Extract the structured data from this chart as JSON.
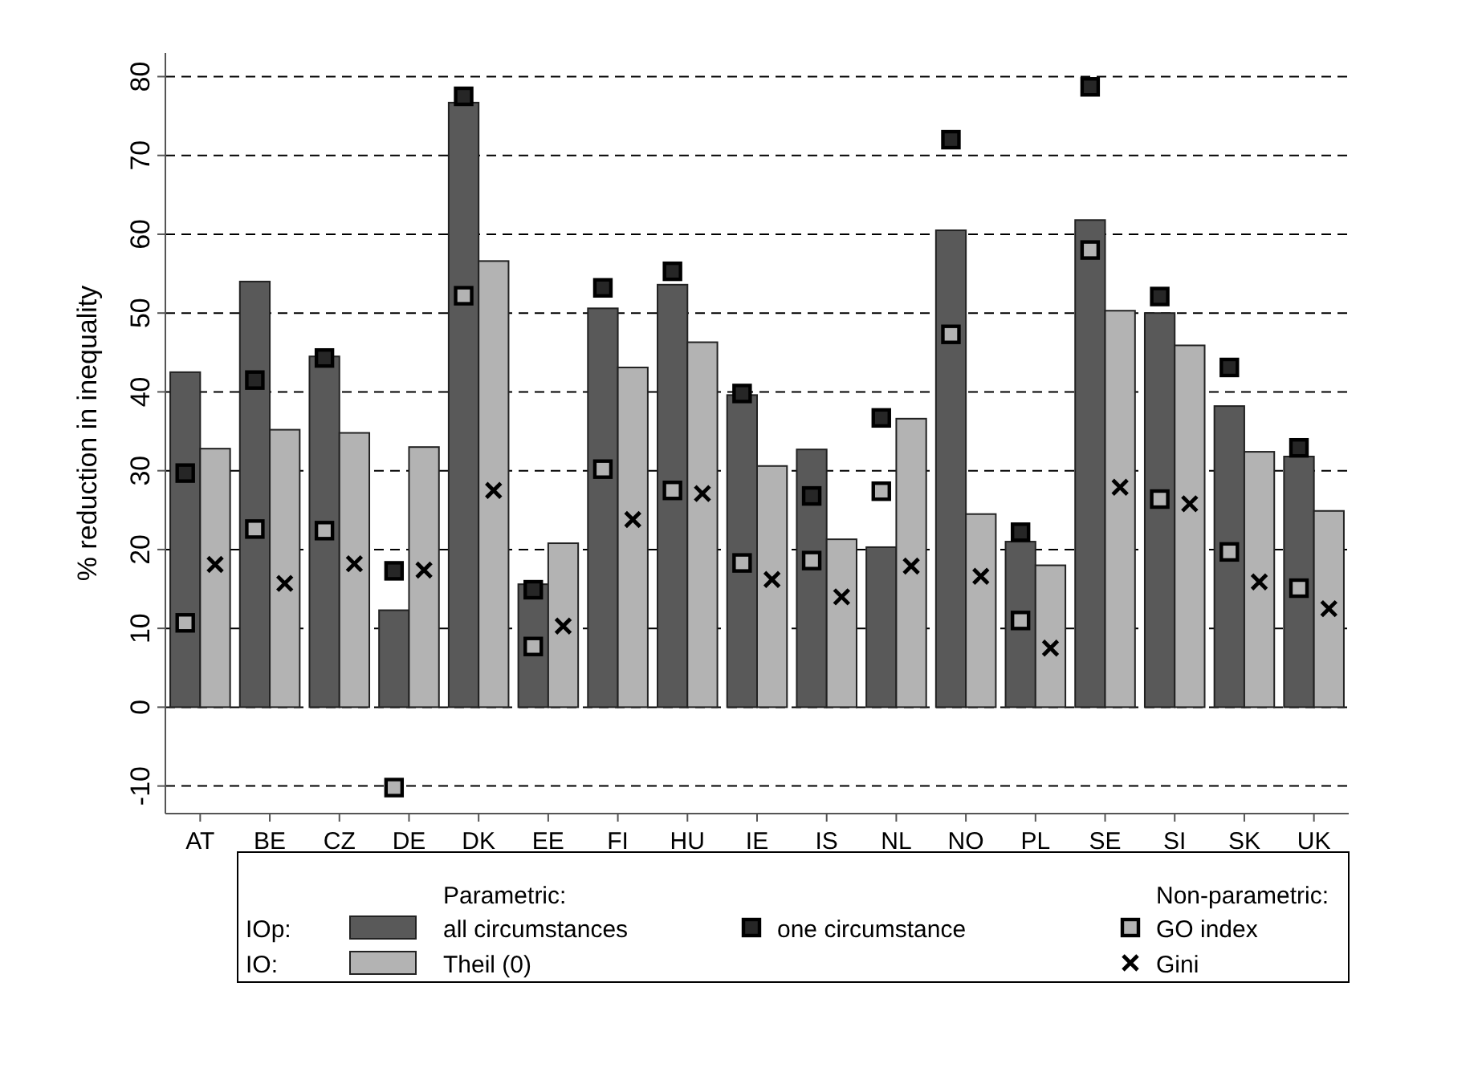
{
  "chart_data": {
    "type": "bar",
    "ylabel": "% reduction in inequality",
    "categories": [
      "AT",
      "BE",
      "CZ",
      "DE",
      "DK",
      "EE",
      "FI",
      "HU",
      "IE",
      "IS",
      "NL",
      "NO",
      "PL",
      "SE",
      "SI",
      "SK",
      "UK"
    ],
    "ylim": [
      -13.5,
      83
    ],
    "yticks": [
      -10,
      0,
      10,
      20,
      30,
      40,
      50,
      60,
      70,
      80
    ],
    "grid": "y",
    "legend": "bottom",
    "legend_title": "Parametric:",
    "annotations": [
      "IOp:",
      "IO:",
      "Non-parametric:"
    ],
    "series": [
      {
        "name": "all circumstances",
        "color": "#595959",
        "values": [
          42.5,
          54,
          44.5,
          12.3,
          76.7,
          15.6,
          50.6,
          53.6,
          39.6,
          32.7,
          20.3,
          60.5,
          21,
          61.8,
          50,
          38.2,
          31.8
        ]
      },
      {
        "name": "Theil (0)",
        "color": "#b3b3b3",
        "values": [
          32.8,
          35.2,
          34.8,
          33,
          56.6,
          20.8,
          43.1,
          46.3,
          30.6,
          21.3,
          36.6,
          24.5,
          18,
          50.3,
          45.9,
          32.4,
          24.9
        ]
      },
      {
        "name": "one circumstance",
        "type": "scatter",
        "marker": "square",
        "color": "#262626",
        "values": [
          29.7,
          41.5,
          44.3,
          17.3,
          77.5,
          14.9,
          53.2,
          55.3,
          39.8,
          26.8,
          36.7,
          72,
          22.2,
          78.7,
          52.1,
          43.1,
          32.9
        ]
      },
      {
        "name": "GO index",
        "type": "scatter",
        "marker": "square",
        "color": "#b3b3b3",
        "values": [
          10.7,
          22.6,
          22.4,
          -10.2,
          52.2,
          7.7,
          30.2,
          27.5,
          18.3,
          18.6,
          27.4,
          47.3,
          11,
          58,
          26.4,
          19.7,
          15.1
        ]
      },
      {
        "name": "Gini",
        "type": "scatter",
        "marker": "cross",
        "color": "#000000",
        "values": [
          18.1,
          15.7,
          18.2,
          17.4,
          27.5,
          10.3,
          23.8,
          27.1,
          16.2,
          14,
          17.9,
          16.6,
          7.5,
          27.9,
          25.8,
          15.9,
          12.5
        ]
      }
    ]
  }
}
